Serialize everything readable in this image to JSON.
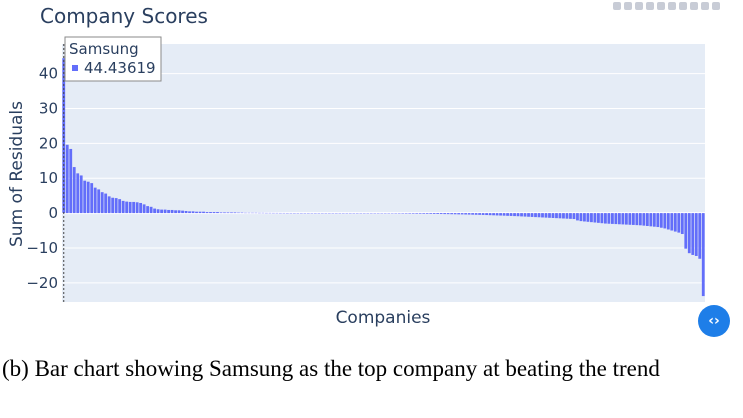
{
  "chart_data": {
    "type": "bar",
    "title": "Company Scores",
    "xlabel": "Companies",
    "ylabel": "Sum of Residuals",
    "ylim": [
      -25.5,
      48.5
    ],
    "yticks": [
      40,
      30,
      20,
      10,
      0,
      -10,
      -20
    ],
    "ytick_labels": [
      "40",
      "30",
      "20",
      "10",
      "0",
      "−10",
      "−20"
    ],
    "grid": true,
    "bar_color": "#636efa",
    "plot_bg": "#e5ecf6",
    "values": [
      44.43619,
      19.6,
      18.4,
      13.2,
      11.4,
      10.8,
      9.3,
      9.0,
      8.6,
      7.3,
      6.8,
      6.0,
      5.6,
      4.8,
      4.4,
      4.3,
      4.0,
      3.5,
      3.3,
      3.2,
      3.2,
      3.1,
      2.9,
      2.5,
      2.0,
      1.8,
      1.3,
      1.1,
      1.0,
      1.0,
      0.9,
      0.9,
      0.8,
      0.8,
      0.7,
      0.6,
      0.5,
      0.5,
      0.4,
      0.4,
      0.4,
      0.3,
      0.3,
      0.3,
      0.3,
      0.2,
      0.2,
      0.2,
      0.2,
      0.2,
      0.15,
      0.15,
      0.1,
      0.1,
      0.1,
      0.1,
      0.08,
      0.08,
      0.06,
      0.06,
      0.05,
      0.05,
      0.04,
      0.04,
      0.03,
      0.03,
      0.02,
      0.02,
      0.01,
      0.01,
      0.01,
      0.0,
      0.0,
      0.0,
      0.0,
      0.0,
      -0.01,
      -0.01,
      -0.01,
      -0.02,
      -0.02,
      -0.02,
      -0.03,
      -0.03,
      -0.04,
      -0.04,
      -0.05,
      -0.05,
      -0.06,
      -0.07,
      -0.08,
      -0.09,
      -0.1,
      -0.1,
      -0.11,
      -0.12,
      -0.13,
      -0.14,
      -0.15,
      -0.16,
      -0.17,
      -0.18,
      -0.19,
      -0.2,
      -0.21,
      -0.22,
      -0.24,
      -0.25,
      -0.27,
      -0.29,
      -0.3,
      -0.32,
      -0.34,
      -0.36,
      -0.38,
      -0.4,
      -0.42,
      -0.45,
      -0.48,
      -0.5,
      -0.53,
      -0.56,
      -0.6,
      -0.63,
      -0.67,
      -0.7,
      -0.74,
      -0.78,
      -0.82,
      -0.86,
      -0.9,
      -0.95,
      -1.0,
      -1.05,
      -1.1,
      -1.15,
      -1.2,
      -1.25,
      -1.3,
      -1.35,
      -1.4,
      -1.45,
      -1.5,
      -1.55,
      -1.6,
      -1.65,
      -1.7,
      -2.1,
      -2.3,
      -2.4,
      -2.5,
      -2.6,
      -2.7,
      -2.8,
      -2.9,
      -3.0,
      -3.05,
      -3.1,
      -3.15,
      -3.2,
      -3.25,
      -3.3,
      -3.35,
      -3.4,
      -3.45,
      -3.5,
      -3.6,
      -3.7,
      -3.8,
      -3.9,
      -4.0,
      -4.2,
      -4.4,
      -4.7,
      -5.0,
      -5.3,
      -5.6,
      -6.0,
      -10.2,
      -11.5,
      -12.0,
      -12.3,
      -13.1,
      -23.8
    ]
  },
  "tooltip": {
    "company": "Samsung",
    "value": "44.43619"
  },
  "nav_button": {
    "label": "‹›"
  },
  "caption": "(b) Bar chart showing Samsung as the top company at beating the trend"
}
